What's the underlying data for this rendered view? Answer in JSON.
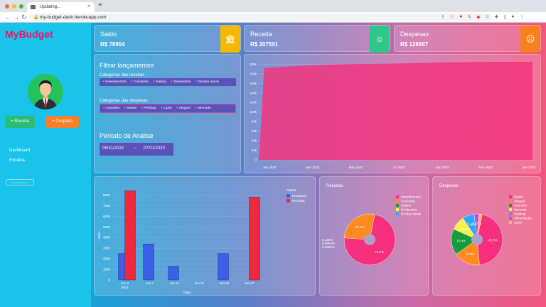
{
  "browser": {
    "tab_title": "Updating...",
    "url": "my-budget-dash.herokuapp.com"
  },
  "sidebar": {
    "logo": "MyBudget",
    "buttons": [
      {
        "label": "+ Receita"
      },
      {
        "label": "+ Despesa"
      }
    ],
    "nav": [
      {
        "label": "Dashboard"
      },
      {
        "label": "Extratos"
      }
    ],
    "faded_button": "Modo Escuro"
  },
  "kpis": [
    {
      "label": "Saldo",
      "value": "R$ 78904",
      "icon": "bank-icon",
      "color": "#f5b800"
    },
    {
      "label": "Receita",
      "value": "R$ 207591",
      "icon": "smile-icon",
      "color": "#2ec78c"
    },
    {
      "label": "Despesas",
      "value": "R$ 128687",
      "icon": "frown-icon",
      "color": "#f5821f"
    }
  ],
  "filters": {
    "title": "Filtrar lançamentos",
    "income_label": "Categorias das receitas",
    "income_tags": [
      "Investimentos",
      "Comissão",
      "Salário",
      "Dividendos",
      "Dívidas ativas"
    ],
    "expense_label": "Categorias das despesas",
    "expense_tags": [
      "Gasolina",
      "Saúde",
      "Petshop",
      "Lazer",
      "Aluguel",
      "Mercado"
    ],
    "period_label": "Período de Análise",
    "date_start": "05/31/2022",
    "date_end": "07/01/2022",
    "date_arrow": "→"
  },
  "chart_data": [
    {
      "type": "area",
      "name": "balance",
      "x": [
        "Jan 2022",
        "Mar 2022",
        "May 2022",
        "Jul 2022",
        "Sep 2022",
        "Nov 2022",
        "Jan 2023"
      ],
      "y_ticks": [
        "0",
        "20k",
        "40k",
        "60k",
        "80k",
        "100k",
        "120k",
        "140k",
        "160k",
        "180k",
        "200k"
      ],
      "ylim": [
        0,
        205000
      ],
      "points": [
        [
          0,
          0
        ],
        [
          0.02,
          192000
        ],
        [
          0.1,
          195000
        ],
        [
          0.2,
          198000
        ],
        [
          0.3,
          200000
        ],
        [
          0.45,
          201000
        ],
        [
          0.55,
          202000
        ],
        [
          0.7,
          204000
        ],
        [
          0.85,
          205000
        ],
        [
          1,
          205000
        ]
      ],
      "color": "#f2357f"
    },
    {
      "type": "bar",
      "name": "output",
      "categories": [
        "Jun 3\n2022",
        "Jun 7",
        "Jun 12",
        "Jun 17",
        "Jun 22",
        "Jun 27"
      ],
      "ylim": [
        0,
        8500
      ],
      "y_ticks": [
        "0",
        "1000",
        "2000",
        "3000",
        "4000",
        "5000",
        "6000",
        "7000",
        "8000"
      ],
      "ylabel": "Valor",
      "xlabel": "Data",
      "legend_title": "Output",
      "series": [
        {
          "name": "Despesas",
          "color": "#3a5fe8",
          "values": [
            2500,
            3400,
            1300,
            0,
            2500,
            0
          ]
        },
        {
          "name": "Receitas",
          "color": "#f0283c",
          "values": [
            8400,
            0,
            0,
            0,
            0,
            7800
          ]
        }
      ]
    },
    {
      "type": "pie",
      "title": "Receitas",
      "slices": [
        {
          "label": "Investimentos",
          "value": 72.8,
          "color": "#f72f7f"
        },
        {
          "label": "Comissão",
          "value": 27.2,
          "color": "#ff8a1f"
        },
        {
          "label": "Salário",
          "value": 0,
          "color": "#169c3c"
        },
        {
          "label": "Dividendos",
          "value": 0,
          "color": "#f6f14c"
        },
        {
          "label": "Dívidas ativas",
          "value": 0,
          "color": "#2fa8ff"
        }
      ],
      "pct_labels": [
        "72.8%",
        "27.2%"
      ],
      "side_labels": [
        "0.124%",
        "0.0603%",
        "0.0326%"
      ]
    },
    {
      "type": "pie",
      "title": "Despesas",
      "slices": [
        {
          "label": "Saúde",
          "value": 45.3,
          "color": "#f72f7f"
        },
        {
          "label": "Aluguel",
          "value": 16.8,
          "color": "#ff8a1f"
        },
        {
          "label": "Gasolina",
          "value": 16.4,
          "color": "#169c3c"
        },
        {
          "label": "Mercado",
          "value": 9.05,
          "color": "#f6f14c"
        },
        {
          "label": "Petshop",
          "value": 7.45,
          "color": "#2fa8ff"
        },
        {
          "label": "Alimentação",
          "value": 3.07,
          "color": "#c04be0"
        },
        {
          "label": "Lazer",
          "value": 1.93,
          "color": "#ffb36a"
        }
      ],
      "pct_labels": [
        "45.3%",
        "16.8%",
        "16.4%",
        "9.05%",
        "7.45%",
        "3.07%"
      ]
    }
  ]
}
